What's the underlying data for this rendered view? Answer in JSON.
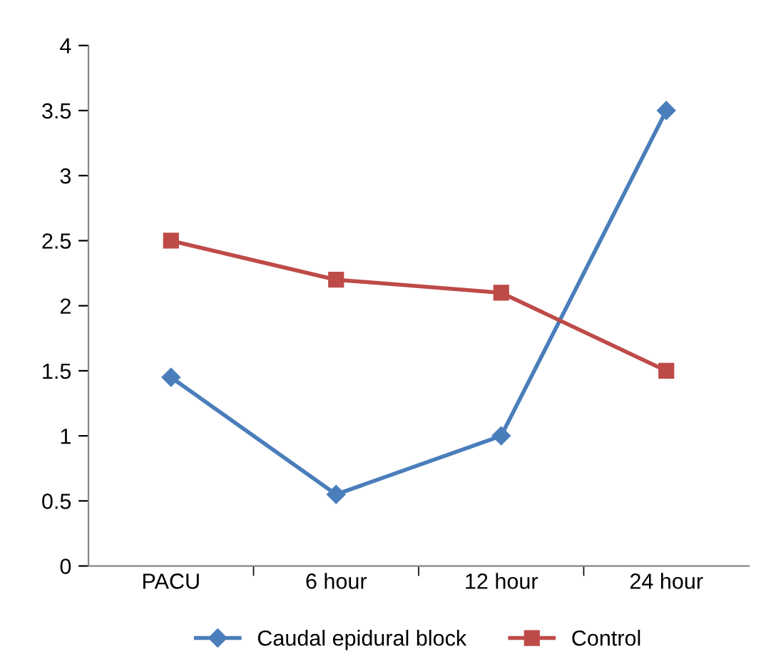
{
  "chart_data": {
    "type": "line",
    "categories": [
      "PACU",
      "6 hour",
      "12 hour",
      "24 hour"
    ],
    "series": [
      {
        "name": "Caudal epidural block",
        "color": "#4a7ebb",
        "marker": "diamond",
        "values": [
          1.45,
          0.55,
          1.0,
          3.5
        ]
      },
      {
        "name": "Control",
        "color": "#be4b48",
        "marker": "square",
        "values": [
          2.5,
          2.2,
          2.1,
          1.5
        ]
      }
    ],
    "ylim": [
      0,
      4
    ],
    "yticks": [
      0,
      0.5,
      1,
      1.5,
      2,
      2.5,
      3,
      3.5,
      4
    ],
    "grid": false,
    "legend": "bottom",
    "line_style": "solid"
  }
}
